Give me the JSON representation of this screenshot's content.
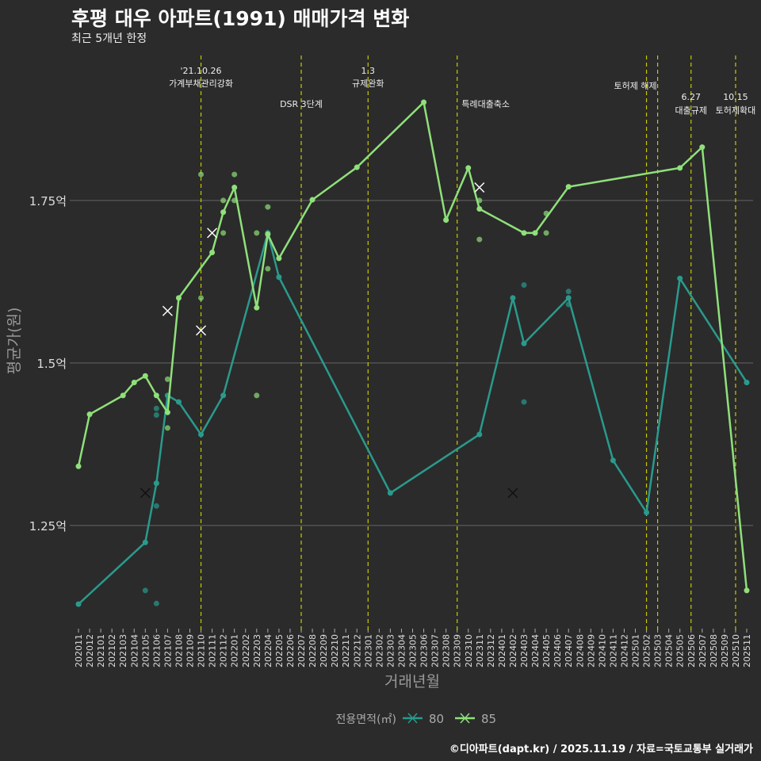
{
  "title": "후평 대우 아파트(1991) 매매가격 변화",
  "subtitle": "최근 5개년 한정",
  "caption": "©디아파트(dapt.kr) / 2025.11.19 / 자료=국토교통부 실거래가",
  "chart_data": {
    "type": "line",
    "xlabel": "거래년월",
    "ylabel": "평균가(원)",
    "ylim": [
      1.095,
      1.973
    ],
    "yticks": [
      {
        "v": 1.25,
        "label": "1.25억"
      },
      {
        "v": 1.5,
        "label": "1.5억"
      },
      {
        "v": 1.75,
        "label": "1.75억"
      }
    ],
    "categories": [
      "202011",
      "202012",
      "202101",
      "202102",
      "202103",
      "202104",
      "202105",
      "202106",
      "202107",
      "202108",
      "202109",
      "202110",
      "202111",
      "202112",
      "202201",
      "202202",
      "202203",
      "202204",
      "202205",
      "202206",
      "202207",
      "202208",
      "202209",
      "202210",
      "202211",
      "202212",
      "202301",
      "202302",
      "202303",
      "202304",
      "202305",
      "202306",
      "202307",
      "202308",
      "202309",
      "202310",
      "202311",
      "202312",
      "202401",
      "202402",
      "202403",
      "202404",
      "202405",
      "202406",
      "202407",
      "202408",
      "202409",
      "202410",
      "202411",
      "202412",
      "202501",
      "202502",
      "202503",
      "202504",
      "202505",
      "202506",
      "202507",
      "202508",
      "202509",
      "202510",
      "202511"
    ],
    "legend": {
      "title": "전용면적(㎡)",
      "position": "bottom"
    },
    "series": [
      {
        "name": "80",
        "color": "#2a9a8c",
        "line": [
          [
            0,
            1.129
          ],
          [
            6,
            1.224
          ],
          [
            7,
            1.315
          ],
          [
            8,
            1.45
          ],
          [
            9,
            1.44
          ],
          [
            11,
            1.39
          ],
          [
            13,
            1.45
          ],
          [
            17,
            1.7
          ],
          [
            18,
            1.632
          ],
          [
            28,
            1.3
          ],
          [
            36,
            1.39
          ],
          [
            39,
            1.6
          ],
          [
            40,
            1.53
          ],
          [
            44,
            1.6
          ],
          [
            48,
            1.35
          ],
          [
            51,
            1.27
          ],
          [
            54,
            1.63
          ],
          [
            60,
            1.47
          ]
        ],
        "points": [
          [
            6,
            1.15
          ],
          [
            7,
            1.13
          ],
          [
            7,
            1.28
          ],
          [
            7,
            1.43
          ],
          [
            7,
            1.42
          ],
          [
            40,
            1.44
          ],
          [
            40,
            1.62
          ],
          [
            44,
            1.61
          ],
          [
            44,
            1.59
          ],
          [
            60,
            1.47
          ]
        ],
        "crosses": [
          [
            6,
            1.3
          ],
          [
            39,
            1.3
          ]
        ]
      },
      {
        "name": "85",
        "color": "#8fe07a",
        "line": [
          [
            0,
            1.341
          ],
          [
            1,
            1.421
          ],
          [
            4,
            1.45
          ],
          [
            5,
            1.47
          ],
          [
            6,
            1.48
          ],
          [
            7,
            1.45
          ],
          [
            8,
            1.424
          ],
          [
            9,
            1.6
          ],
          [
            12,
            1.67
          ],
          [
            13,
            1.732
          ],
          [
            14,
            1.77
          ],
          [
            16,
            1.585
          ],
          [
            17,
            1.698
          ],
          [
            18,
            1.661
          ],
          [
            21,
            1.751
          ],
          [
            25,
            1.801
          ],
          [
            31,
            1.901
          ],
          [
            33,
            1.72
          ],
          [
            35,
            1.8
          ],
          [
            36,
            1.737
          ],
          [
            40,
            1.7
          ],
          [
            41,
            1.7
          ],
          [
            44,
            1.771
          ],
          [
            54,
            1.8
          ],
          [
            56,
            1.832
          ],
          [
            60,
            1.15
          ]
        ],
        "points": [
          [
            11,
            1.79
          ],
          [
            11,
            1.6
          ],
          [
            13,
            1.7
          ],
          [
            14,
            1.79
          ],
          [
            13,
            1.75
          ],
          [
            14,
            1.75
          ],
          [
            16,
            1.7
          ],
          [
            16,
            1.45
          ],
          [
            17,
            1.74
          ],
          [
            17,
            1.645
          ],
          [
            8,
            1.475
          ],
          [
            8,
            1.4
          ],
          [
            42,
            1.73
          ],
          [
            42,
            1.7
          ],
          [
            36,
            1.69
          ],
          [
            36,
            1.75
          ],
          [
            33,
            1.72
          ]
        ],
        "crosses": [
          [
            8,
            1.58
          ],
          [
            11,
            1.55
          ],
          [
            12,
            1.7
          ],
          [
            36,
            1.77
          ]
        ]
      }
    ],
    "events": [
      {
        "month": 11,
        "lines": [
          "'21.10.26",
          "가계부채관리강화"
        ],
        "row": 0
      },
      {
        "month": 20,
        "lines": [
          "DSR 3단계"
        ],
        "row": 2
      },
      {
        "month": 26,
        "lines": [
          "1.3",
          "규제완화"
        ],
        "row": 0
      },
      {
        "month": 34,
        "lines": [
          "특례대출축소"
        ],
        "row": 2
      },
      {
        "month": 51,
        "lines": [
          "토허제 해제"
        ],
        "row": 1
      },
      {
        "month": 52,
        "lines": [],
        "row": 1
      },
      {
        "month": 55,
        "lines": [
          "6.27",
          "대출규제"
        ],
        "row": 3
      },
      {
        "month": 59,
        "lines": [
          "10.15",
          "토허제확대"
        ],
        "row": 3
      }
    ]
  }
}
